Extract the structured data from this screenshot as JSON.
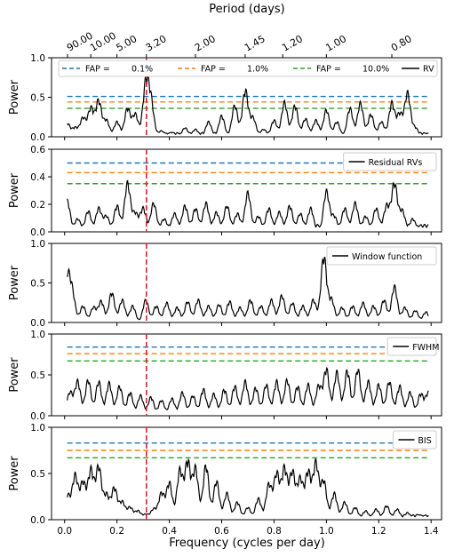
{
  "figure": {
    "top_axis_label": "Period (days)",
    "top_ticks": [
      {
        "label": "90.00",
        "frequency": 0.0111
      },
      {
        "label": "10.00",
        "frequency": 0.1
      },
      {
        "label": "5.00",
        "frequency": 0.2
      },
      {
        "label": "3.20",
        "frequency": 0.3125
      },
      {
        "label": "2.00",
        "frequency": 0.5
      },
      {
        "label": "1.45",
        "frequency": 0.6897
      },
      {
        "label": "1.20",
        "frequency": 0.8333
      },
      {
        "label": "1.00",
        "frequency": 1.0
      },
      {
        "label": "0.80",
        "frequency": 1.25
      }
    ],
    "x_label": "Frequency (cycles per day)",
    "marker_frequency": 0.3125,
    "colors": {
      "line": "#000000",
      "marker": "#d62728",
      "fap_0_1": "#1f77b4",
      "fap_1": "#ff7f0e",
      "fap_10": "#2ca02c"
    }
  },
  "chart_data": [
    {
      "type": "line",
      "ylabel": "Power",
      "ylim": [
        0,
        1.0
      ],
      "yticks": [
        "0.0",
        "0.5",
        "1.0"
      ],
      "xlim": [
        -0.05,
        1.44
      ],
      "xticks": [
        "0.0",
        "0.2",
        "0.4",
        "0.6",
        "0.8",
        "1.0",
        "1.2",
        "1.4"
      ],
      "legend": {
        "entries": [
          "FAP =",
          "0.1%",
          "FAP =",
          "1.0%",
          "FAP =",
          "10.0%",
          "RV"
        ],
        "placement": "top"
      },
      "fap_levels": [
        0.51,
        0.44,
        0.36
      ],
      "series": [
        {
          "name": "RV",
          "peaks": [
            [
              0.01,
              0.18
            ],
            [
              0.04,
              0.12
            ],
            [
              0.07,
              0.25
            ],
            [
              0.1,
              0.38
            ],
            [
              0.13,
              0.48
            ],
            [
              0.16,
              0.22
            ],
            [
              0.2,
              0.2
            ],
            [
              0.24,
              0.38
            ],
            [
              0.27,
              0.3
            ],
            [
              0.31,
              0.7
            ],
            [
              0.33,
              0.45
            ],
            [
              0.37,
              0.08
            ],
            [
              0.41,
              0.06
            ],
            [
              0.46,
              0.12
            ],
            [
              0.5,
              0.1
            ],
            [
              0.55,
              0.2
            ],
            [
              0.6,
              0.28
            ],
            [
              0.65,
              0.42
            ],
            [
              0.69,
              0.62
            ],
            [
              0.72,
              0.25
            ],
            [
              0.76,
              0.1
            ],
            [
              0.8,
              0.22
            ],
            [
              0.84,
              0.46
            ],
            [
              0.88,
              0.42
            ],
            [
              0.92,
              0.24
            ],
            [
              0.96,
              0.22
            ],
            [
              1.0,
              0.36
            ],
            [
              1.04,
              0.2
            ],
            [
              1.09,
              0.38
            ],
            [
              1.13,
              0.45
            ],
            [
              1.17,
              0.3
            ],
            [
              1.21,
              0.2
            ],
            [
              1.25,
              0.45
            ],
            [
              1.28,
              0.3
            ],
            [
              1.31,
              0.58
            ],
            [
              1.34,
              0.12
            ],
            [
              1.38,
              0.04
            ]
          ]
        }
      ]
    },
    {
      "type": "line",
      "ylabel": "Power",
      "ylim": [
        0,
        0.6
      ],
      "yticks": [
        "0.0",
        "0.2",
        "0.4",
        "0.6"
      ],
      "xlim": [
        -0.05,
        1.44
      ],
      "xticks": [
        "0.0",
        "0.2",
        "0.4",
        "0.6",
        "0.8",
        "1.0",
        "1.2",
        "1.4"
      ],
      "legend": {
        "entries": [
          "Residual RVs"
        ],
        "placement": "upper right"
      },
      "fap_levels": [
        0.5,
        0.43,
        0.35
      ],
      "series": [
        {
          "name": "Residual RVs",
          "peaks": [
            [
              0.01,
              0.24
            ],
            [
              0.05,
              0.1
            ],
            [
              0.09,
              0.16
            ],
            [
              0.13,
              0.18
            ],
            [
              0.16,
              0.12
            ],
            [
              0.2,
              0.2
            ],
            [
              0.24,
              0.37
            ],
            [
              0.27,
              0.14
            ],
            [
              0.3,
              0.18
            ],
            [
              0.34,
              0.22
            ],
            [
              0.38,
              0.1
            ],
            [
              0.42,
              0.14
            ],
            [
              0.46,
              0.2
            ],
            [
              0.5,
              0.18
            ],
            [
              0.54,
              0.22
            ],
            [
              0.58,
              0.15
            ],
            [
              0.62,
              0.2
            ],
            [
              0.66,
              0.14
            ],
            [
              0.7,
              0.3
            ],
            [
              0.74,
              0.12
            ],
            [
              0.78,
              0.18
            ],
            [
              0.82,
              0.15
            ],
            [
              0.86,
              0.2
            ],
            [
              0.9,
              0.14
            ],
            [
              0.94,
              0.18
            ],
            [
              1.0,
              0.31
            ],
            [
              1.03,
              0.12
            ],
            [
              1.07,
              0.18
            ],
            [
              1.11,
              0.22
            ],
            [
              1.15,
              0.12
            ],
            [
              1.19,
              0.18
            ],
            [
              1.23,
              0.2
            ],
            [
              1.26,
              0.37
            ],
            [
              1.29,
              0.16
            ],
            [
              1.33,
              0.1
            ],
            [
              1.37,
              0.04
            ]
          ]
        }
      ]
    },
    {
      "type": "line",
      "ylabel": "Power",
      "ylim": [
        0,
        1.0
      ],
      "yticks": [
        "0.0",
        "0.5",
        "1.0"
      ],
      "xlim": [
        -0.05,
        1.44
      ],
      "xticks": [
        "0.0",
        "0.2",
        "0.4",
        "0.6",
        "0.8",
        "1.0",
        "1.2",
        "1.4"
      ],
      "legend": {
        "entries": [
          "Window function"
        ],
        "placement": "upper right"
      },
      "fap_levels": [],
      "series": [
        {
          "name": "Window function",
          "peaks": [
            [
              0.01,
              0.6
            ],
            [
              0.03,
              0.36
            ],
            [
              0.07,
              0.22
            ],
            [
              0.11,
              0.2
            ],
            [
              0.14,
              0.28
            ],
            [
              0.18,
              0.4
            ],
            [
              0.22,
              0.3
            ],
            [
              0.26,
              0.22
            ],
            [
              0.31,
              0.3
            ],
            [
              0.35,
              0.22
            ],
            [
              0.39,
              0.26
            ],
            [
              0.43,
              0.2
            ],
            [
              0.47,
              0.28
            ],
            [
              0.51,
              0.3
            ],
            [
              0.55,
              0.22
            ],
            [
              0.59,
              0.24
            ],
            [
              0.63,
              0.28
            ],
            [
              0.67,
              0.2
            ],
            [
              0.71,
              0.3
            ],
            [
              0.75,
              0.22
            ],
            [
              0.79,
              0.3
            ],
            [
              0.83,
              0.36
            ],
            [
              0.87,
              0.26
            ],
            [
              0.91,
              0.22
            ],
            [
              0.95,
              0.3
            ],
            [
              0.99,
              0.88
            ],
            [
              1.02,
              0.3
            ],
            [
              1.06,
              0.2
            ],
            [
              1.1,
              0.22
            ],
            [
              1.14,
              0.26
            ],
            [
              1.18,
              0.22
            ],
            [
              1.22,
              0.3
            ],
            [
              1.26,
              0.48
            ],
            [
              1.3,
              0.2
            ],
            [
              1.34,
              0.16
            ],
            [
              1.38,
              0.14
            ]
          ]
        }
      ]
    },
    {
      "type": "line",
      "ylabel": "Power",
      "ylim": [
        0,
        1.0
      ],
      "yticks": [
        "0.0",
        "0.5",
        "1.0"
      ],
      "xlim": [
        -0.05,
        1.44
      ],
      "xticks": [
        "0.0",
        "0.2",
        "0.4",
        "0.6",
        "0.8",
        "1.0",
        "1.2",
        "1.4"
      ],
      "legend": {
        "entries": [
          "FWHM"
        ],
        "placement": "upper right"
      },
      "fap_levels": [
        0.84,
        0.76,
        0.67
      ],
      "series": [
        {
          "name": "FWHM",
          "peaks": [
            [
              0.02,
              0.3
            ],
            [
              0.05,
              0.44
            ],
            [
              0.09,
              0.46
            ],
            [
              0.13,
              0.44
            ],
            [
              0.17,
              0.42
            ],
            [
              0.21,
              0.38
            ],
            [
              0.25,
              0.3
            ],
            [
              0.29,
              0.26
            ],
            [
              0.33,
              0.24
            ],
            [
              0.37,
              0.2
            ],
            [
              0.41,
              0.22
            ],
            [
              0.45,
              0.3
            ],
            [
              0.49,
              0.26
            ],
            [
              0.53,
              0.34
            ],
            [
              0.57,
              0.28
            ],
            [
              0.61,
              0.34
            ],
            [
              0.65,
              0.38
            ],
            [
              0.69,
              0.44
            ],
            [
              0.73,
              0.36
            ],
            [
              0.77,
              0.4
            ],
            [
              0.81,
              0.44
            ],
            [
              0.85,
              0.46
            ],
            [
              0.89,
              0.38
            ],
            [
              0.93,
              0.4
            ],
            [
              0.97,
              0.38
            ],
            [
              1.0,
              0.6
            ],
            [
              1.04,
              0.56
            ],
            [
              1.08,
              0.58
            ],
            [
              1.12,
              0.6
            ],
            [
              1.16,
              0.44
            ],
            [
              1.2,
              0.4
            ],
            [
              1.24,
              0.44
            ],
            [
              1.28,
              0.38
            ],
            [
              1.32,
              0.3
            ],
            [
              1.36,
              0.28
            ],
            [
              1.39,
              0.3
            ]
          ]
        }
      ]
    },
    {
      "type": "line",
      "ylabel": "Power",
      "ylim": [
        0,
        1.0
      ],
      "yticks": [
        "0.0",
        "0.5",
        "1.0"
      ],
      "xlim": [
        -0.05,
        1.44
      ],
      "xticks": [
        "0.0",
        "0.2",
        "0.4",
        "0.6",
        "0.8",
        "1.0",
        "1.2",
        "1.4"
      ],
      "xlabel": "Frequency (cycles per day)",
      "legend": {
        "entries": [
          "BIS"
        ],
        "placement": "upper right"
      },
      "fap_levels": [
        0.83,
        0.75,
        0.67
      ],
      "series": [
        {
          "name": "BIS",
          "peaks": [
            [
              0.01,
              0.28
            ],
            [
              0.04,
              0.5
            ],
            [
              0.07,
              0.42
            ],
            [
              0.1,
              0.56
            ],
            [
              0.13,
              0.6
            ],
            [
              0.16,
              0.28
            ],
            [
              0.19,
              0.36
            ],
            [
              0.22,
              0.2
            ],
            [
              0.25,
              0.14
            ],
            [
              0.28,
              0.1
            ],
            [
              0.31,
              0.06
            ],
            [
              0.34,
              0.12
            ],
            [
              0.37,
              0.3
            ],
            [
              0.4,
              0.42
            ],
            [
              0.44,
              0.56
            ],
            [
              0.47,
              0.66
            ],
            [
              0.5,
              0.58
            ],
            [
              0.54,
              0.62
            ],
            [
              0.58,
              0.44
            ],
            [
              0.62,
              0.3
            ],
            [
              0.66,
              0.2
            ],
            [
              0.7,
              0.14
            ],
            [
              0.74,
              0.24
            ],
            [
              0.78,
              0.4
            ],
            [
              0.81,
              0.52
            ],
            [
              0.84,
              0.58
            ],
            [
              0.87,
              0.54
            ],
            [
              0.9,
              0.46
            ],
            [
              0.93,
              0.54
            ],
            [
              0.96,
              0.64
            ],
            [
              0.99,
              0.44
            ],
            [
              1.03,
              0.3
            ],
            [
              1.07,
              0.2
            ],
            [
              1.11,
              0.14
            ],
            [
              1.15,
              0.1
            ],
            [
              1.19,
              0.12
            ],
            [
              1.23,
              0.16
            ],
            [
              1.27,
              0.12
            ],
            [
              1.31,
              0.08
            ],
            [
              1.35,
              0.06
            ],
            [
              1.39,
              0.04
            ]
          ]
        }
      ]
    }
  ]
}
